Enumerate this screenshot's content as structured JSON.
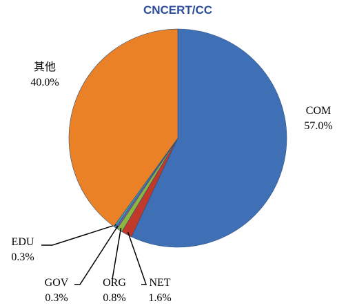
{
  "logo": "CNCERT/CC",
  "chart_data": {
    "type": "pie",
    "categories": [
      "COM",
      "NET",
      "ORG",
      "GOV",
      "EDU",
      "其他"
    ],
    "values": [
      57.0,
      1.6,
      0.8,
      0.3,
      0.3,
      40.0
    ],
    "value_labels": [
      "57.0%",
      "1.6%",
      "0.8%",
      "0.3%",
      "0.3%",
      "40.0%"
    ],
    "colors": [
      "#3f6fb5",
      "#c0392b",
      "#8db63f",
      "#7a5ea3",
      "#3aa1b5",
      "#ea8126"
    ]
  }
}
